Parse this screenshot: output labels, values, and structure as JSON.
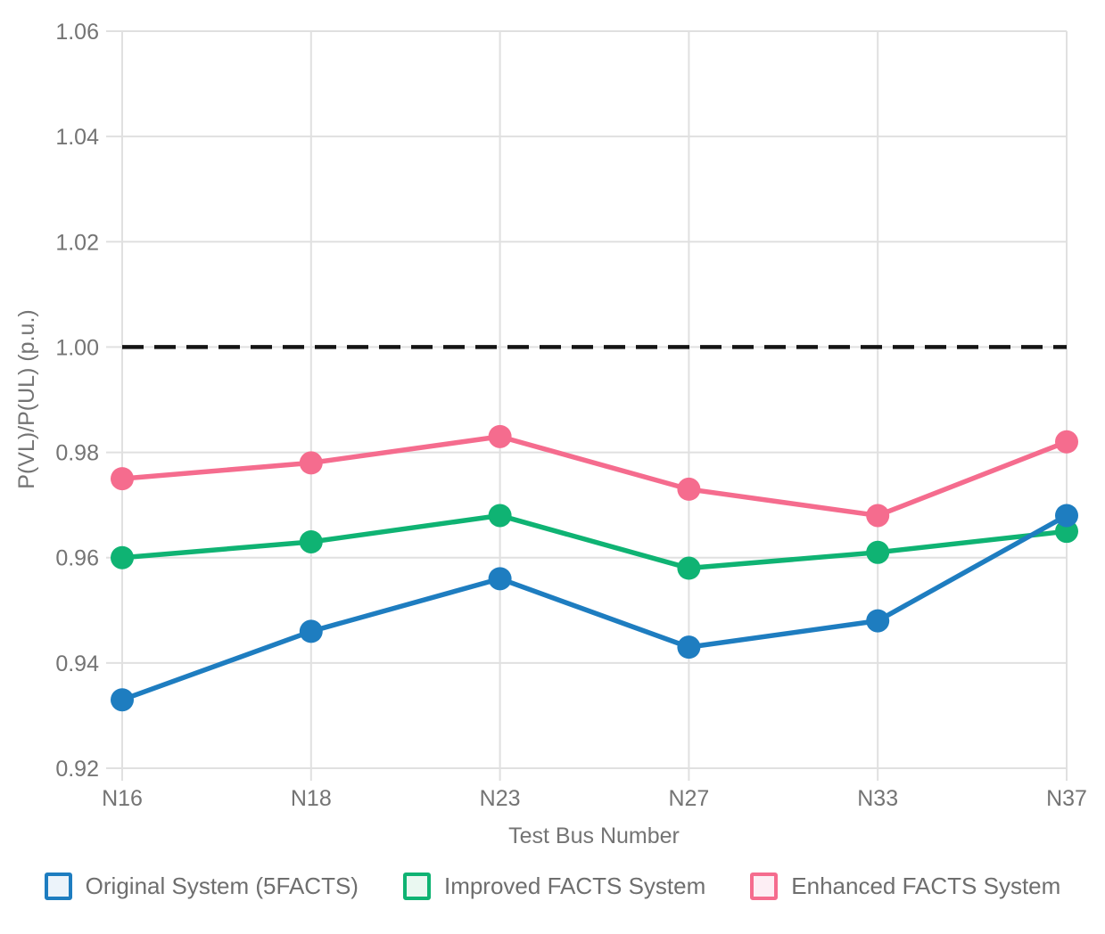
{
  "chart_data": {
    "type": "line",
    "title": "",
    "xlabel": "Test Bus Number",
    "ylabel": "P(VL)/P(UL) (p.u.)",
    "categories": [
      "N16",
      "N18",
      "N23",
      "N27",
      "N33",
      "N37"
    ],
    "series": [
      {
        "name": "Original System (5FACTS)",
        "color": "#1e7dc0",
        "swatch_fill": "#ecf3fa",
        "values": [
          0.933,
          0.946,
          0.956,
          0.943,
          0.948,
          0.968
        ]
      },
      {
        "name": "Improved FACTS System",
        "color": "#0fb373",
        "swatch_fill": "#eaf8f1",
        "values": [
          0.96,
          0.963,
          0.968,
          0.958,
          0.961,
          0.965
        ]
      },
      {
        "name": "Enhanced FACTS System",
        "color": "#f56c8e",
        "swatch_fill": "#fdeef4",
        "values": [
          0.975,
          0.978,
          0.983,
          0.973,
          0.968,
          0.982
        ]
      }
    ],
    "reference_line": {
      "value": 1.0,
      "color": "#141414",
      "style": "dashed"
    },
    "ylim": [
      0.92,
      1.06
    ],
    "yticks": [
      0.92,
      0.94,
      0.96,
      0.98,
      1.0,
      1.02,
      1.04,
      1.06
    ],
    "grid": true,
    "legend_position": "bottom",
    "marker": "circle"
  },
  "colors": {
    "background": "#ffffff",
    "gridline": "#e0e0e0",
    "tick_text": "#747474",
    "legend_text": "#6e6e6e",
    "reference": "#141414"
  }
}
